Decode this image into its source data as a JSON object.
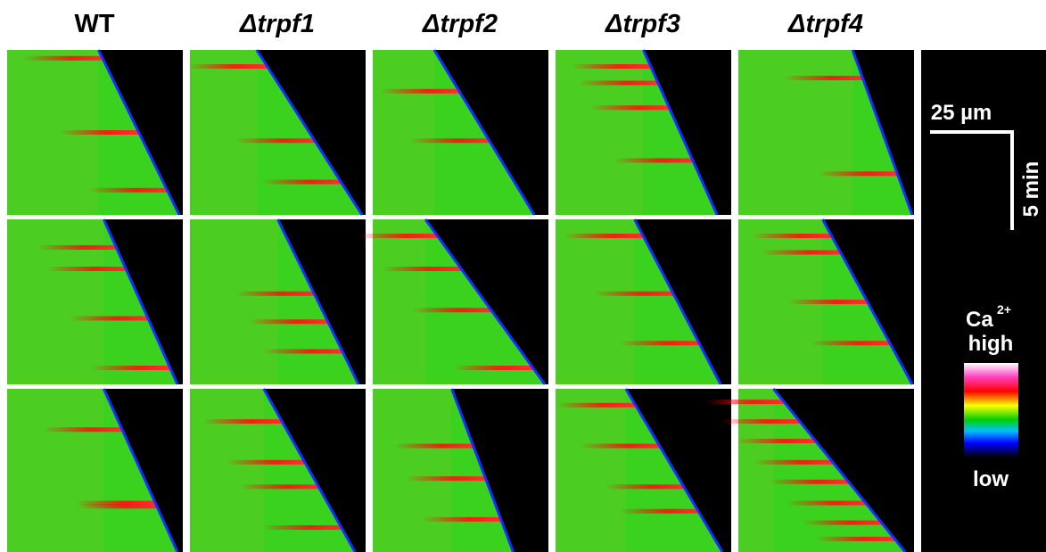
{
  "headers": [
    "WT",
    "Δtrpf1",
    "Δtrpf2",
    "Δtrpf3",
    "Δtrpf4"
  ],
  "scale_bar": {
    "length": "25 µm",
    "time": "5 min"
  },
  "colorbar": {
    "ion": "Ca",
    "charge": "2+",
    "high": "high",
    "low": "low"
  }
}
